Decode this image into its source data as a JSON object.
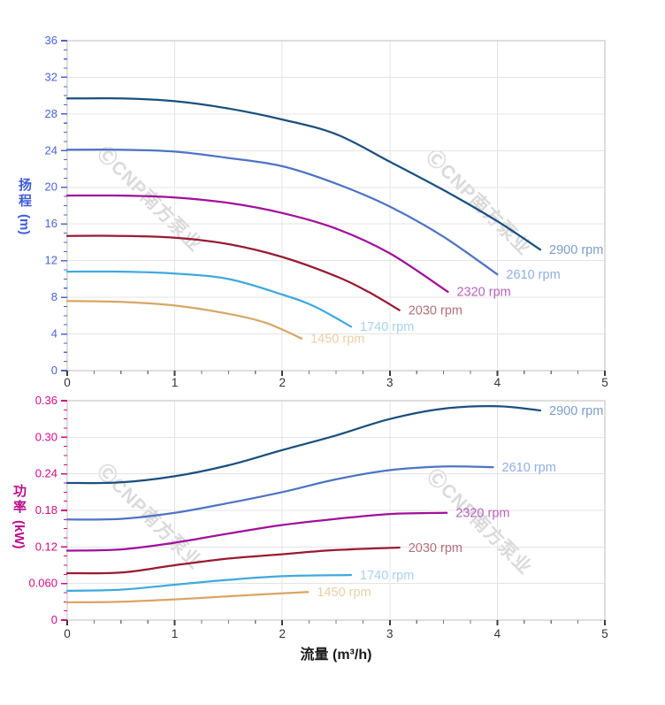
{
  "watermark": {
    "text": "ⒸCNP南方泵业",
    "color": "#dadada"
  },
  "chart_data": [
    {
      "type": "line",
      "title": "",
      "ylabel": "扬程 (m)",
      "ylabel_cn": "扬程",
      "ylabel_unit": "(m)",
      "xlabel": "流量 (m³/h)",
      "xlim": [
        0,
        5
      ],
      "ylim": [
        0,
        36
      ],
      "grid": true,
      "legend_position": "curve-ends",
      "axis_color": "#4a63d8",
      "x_major_ticks": [
        0,
        1,
        2,
        3,
        4,
        5
      ],
      "x_tick_labels": [
        "0",
        "1",
        "2",
        "3",
        "4",
        "5"
      ],
      "x_minor_step": 0.25,
      "y_major_ticks": [
        0,
        4,
        8,
        12,
        16,
        20,
        24,
        28,
        32,
        36
      ],
      "y_tick_labels": [
        "0",
        "4",
        "8",
        "12",
        "16",
        "20",
        "24",
        "28",
        "32",
        "36"
      ],
      "y_minor_step": 1,
      "series": [
        {
          "name": "2900 rpm",
          "color": "#1a507e",
          "label_color": "#7b9cc9",
          "points": [
            [
              0,
              29.7
            ],
            [
              0.5,
              29.7
            ],
            [
              1,
              29.4
            ],
            [
              1.5,
              28.6
            ],
            [
              2,
              27.4
            ],
            [
              2.5,
              25.8
            ],
            [
              3,
              22.8
            ],
            [
              3.5,
              19.7
            ],
            [
              4,
              16.3
            ],
            [
              4.4,
              13.2
            ]
          ]
        },
        {
          "name": "2610 rpm",
          "color": "#4d74c4",
          "label_color": "#8fafe2",
          "points": [
            [
              0,
              24.1
            ],
            [
              0.5,
              24.1
            ],
            [
              1,
              23.9
            ],
            [
              1.5,
              23.2
            ],
            [
              2,
              22.3
            ],
            [
              2.5,
              20.4
            ],
            [
              3,
              17.9
            ],
            [
              3.5,
              14.6
            ],
            [
              4,
              10.5
            ]
          ]
        },
        {
          "name": "2320 rpm",
          "color": "#a0109a",
          "label_color": "#b763bb",
          "points": [
            [
              0,
              19.1
            ],
            [
              0.5,
              19.1
            ],
            [
              1,
              18.9
            ],
            [
              1.5,
              18.3
            ],
            [
              2,
              17.2
            ],
            [
              2.5,
              15.5
            ],
            [
              3,
              12.8
            ],
            [
              3.54,
              8.6
            ]
          ]
        },
        {
          "name": "2030 rpm",
          "color": "#991a33",
          "label_color": "#b37079",
          "points": [
            [
              0,
              14.7
            ],
            [
              0.5,
              14.7
            ],
            [
              1,
              14.5
            ],
            [
              1.5,
              13.8
            ],
            [
              2,
              12.4
            ],
            [
              2.5,
              10.3
            ],
            [
              2.8,
              8.6
            ],
            [
              3.09,
              6.6
            ]
          ]
        },
        {
          "name": "1740 rpm",
          "color": "#3fa9dd",
          "label_color": "#a7d2ed",
          "points": [
            [
              0,
              10.8
            ],
            [
              0.5,
              10.8
            ],
            [
              1,
              10.6
            ],
            [
              1.5,
              10.0
            ],
            [
              2,
              8.3
            ],
            [
              2.3,
              7.0
            ],
            [
              2.64,
              4.8
            ]
          ]
        },
        {
          "name": "1450 rpm",
          "color": "#d8a666",
          "label_color": "#e9cfa4",
          "points": [
            [
              0,
              7.6
            ],
            [
              0.5,
              7.5
            ],
            [
              1,
              7.1
            ],
            [
              1.5,
              6.2
            ],
            [
              1.85,
              5.2
            ],
            [
              2.18,
              3.5
            ]
          ]
        }
      ]
    },
    {
      "type": "line",
      "title": "",
      "ylabel": "功率 (kW)",
      "ylabel_cn": "功率",
      "ylabel_unit": "(kW)",
      "xlabel": "流量 (m³/h)",
      "xlim": [
        0,
        5
      ],
      "ylim": [
        0,
        0.36
      ],
      "grid": true,
      "legend_position": "curve-ends",
      "axis_color": "#d40a86",
      "x_major_ticks": [
        0,
        1,
        2,
        3,
        4,
        5
      ],
      "x_tick_labels": [
        "0",
        "1",
        "2",
        "3",
        "4",
        "5"
      ],
      "x_minor_step": 0.25,
      "y_major_ticks": [
        0,
        0.06,
        0.12,
        0.18,
        0.24,
        0.3,
        0.36
      ],
      "y_tick_labels": [
        "0",
        "0.060",
        "0.12",
        "0.18",
        "0.24",
        "0.30",
        "0.36"
      ],
      "y_minor_step": 0.015,
      "series": [
        {
          "name": "2900 rpm",
          "color": "#1a507e",
          "label_color": "#7b9cc9",
          "points": [
            [
              0,
              0.225
            ],
            [
              0.5,
              0.226
            ],
            [
              1,
              0.236
            ],
            [
              1.5,
              0.254
            ],
            [
              2,
              0.279
            ],
            [
              2.5,
              0.303
            ],
            [
              3,
              0.33
            ],
            [
              3.5,
              0.347
            ],
            [
              4,
              0.351
            ],
            [
              4.4,
              0.344
            ]
          ]
        },
        {
          "name": "2610 rpm",
          "color": "#4d74c4",
          "label_color": "#8fafe2",
          "points": [
            [
              0,
              0.165
            ],
            [
              0.5,
              0.166
            ],
            [
              1,
              0.176
            ],
            [
              1.5,
              0.192
            ],
            [
              2,
              0.21
            ],
            [
              2.5,
              0.231
            ],
            [
              3,
              0.246
            ],
            [
              3.5,
              0.252
            ],
            [
              3.96,
              0.251
            ]
          ]
        },
        {
          "name": "2320 rpm",
          "color": "#a0109a",
          "label_color": "#b763bb",
          "points": [
            [
              0,
              0.114
            ],
            [
              0.5,
              0.116
            ],
            [
              1,
              0.127
            ],
            [
              1.5,
              0.142
            ],
            [
              2,
              0.156
            ],
            [
              2.5,
              0.166
            ],
            [
              3,
              0.174
            ],
            [
              3.53,
              0.176
            ]
          ]
        },
        {
          "name": "2030 rpm",
          "color": "#991a33",
          "label_color": "#b37079",
          "points": [
            [
              0,
              0.077
            ],
            [
              0.5,
              0.078
            ],
            [
              1,
              0.09
            ],
            [
              1.5,
              0.101
            ],
            [
              2,
              0.108
            ],
            [
              2.5,
              0.115
            ],
            [
              3.09,
              0.119
            ]
          ]
        },
        {
          "name": "1740 rpm",
          "color": "#3fa9dd",
          "label_color": "#a7d2ed",
          "points": [
            [
              0,
              0.048
            ],
            [
              0.5,
              0.05
            ],
            [
              1,
              0.058
            ],
            [
              1.5,
              0.066
            ],
            [
              2,
              0.072
            ],
            [
              2.64,
              0.074
            ]
          ]
        },
        {
          "name": "1450 rpm",
          "color": "#d8a666",
          "label_color": "#e9cfa4",
          "points": [
            [
              0,
              0.029
            ],
            [
              0.5,
              0.03
            ],
            [
              1,
              0.034
            ],
            [
              1.5,
              0.039
            ],
            [
              2,
              0.044
            ],
            [
              2.24,
              0.046
            ]
          ]
        }
      ]
    }
  ]
}
